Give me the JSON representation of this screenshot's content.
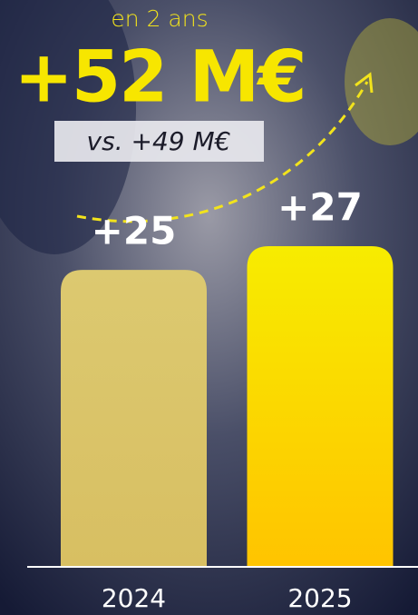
{
  "chart_data": {
    "type": "bar",
    "kicker": "en 2 ans",
    "title": "+52 M€",
    "subtitle": "vs. +49 M€",
    "categories": [
      "2024",
      "2025"
    ],
    "values": [
      25,
      27
    ],
    "value_labels": [
      "+25",
      "+27"
    ],
    "colors": [
      [
        "#dcc970",
        "#d8bf62"
      ],
      [
        "#f7ec00",
        "#ffc400"
      ]
    ]
  }
}
